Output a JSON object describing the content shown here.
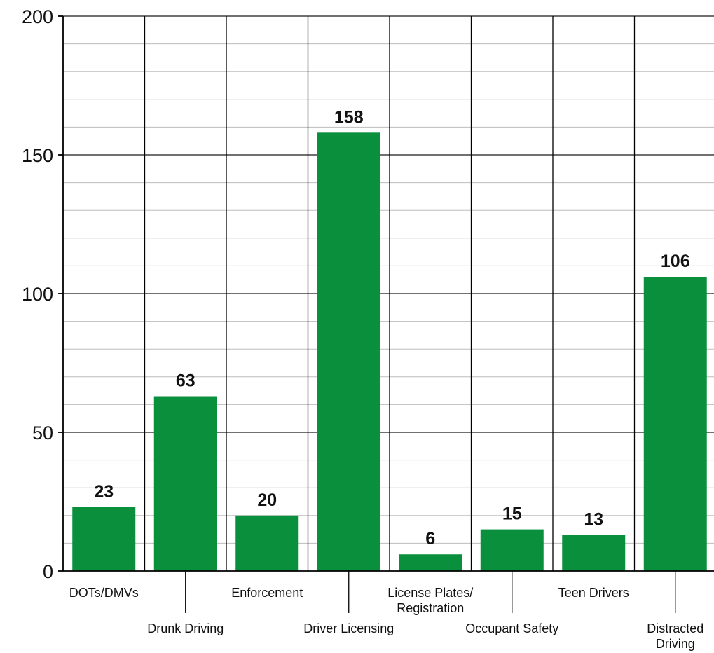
{
  "chart_data": {
    "type": "bar",
    "categories": [
      [
        "DOTs/DMVs"
      ],
      [
        "Drunk Driving"
      ],
      [
        "Enforcement"
      ],
      [
        "Driver Licensing"
      ],
      [
        "License Plates/",
        "Registration"
      ],
      [
        "Occupant Safety"
      ],
      [
        "Teen Drivers"
      ],
      [
        "Distracted",
        "Driving"
      ]
    ],
    "values": [
      23,
      63,
      20,
      158,
      6,
      15,
      13,
      106
    ],
    "value_labels": [
      "23",
      "63",
      "20",
      "158",
      "6",
      "15",
      "13",
      "106"
    ],
    "ylim": [
      0,
      200
    ],
    "yticks": [
      0,
      50,
      100,
      150,
      200
    ],
    "minor_step": 10,
    "label_rows": [
      "upper",
      "lower",
      "upper",
      "lower",
      "upper",
      "lower",
      "upper",
      "lower"
    ],
    "bar_color": "#0a8f3c",
    "grid": true,
    "title": "",
    "xlabel": "",
    "ylabel": ""
  }
}
